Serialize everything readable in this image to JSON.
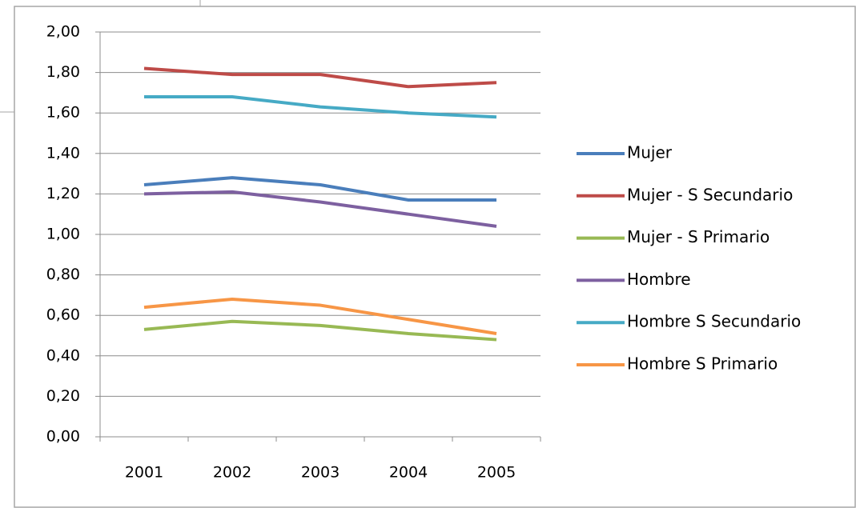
{
  "chart_data": {
    "type": "line",
    "categories": [
      "2001",
      "2002",
      "2003",
      "2004",
      "2005"
    ],
    "series": [
      {
        "name": "Mujer",
        "color": "#4a7ebb",
        "values": [
          1.245,
          1.28,
          1.245,
          1.17,
          1.17
        ]
      },
      {
        "name": "Mujer - S Secundario",
        "color": "#be4b48",
        "values": [
          1.82,
          1.79,
          1.79,
          1.73,
          1.75
        ]
      },
      {
        "name": "Mujer - S Primario",
        "color": "#98b954",
        "values": [
          0.53,
          0.57,
          0.55,
          0.51,
          0.48
        ]
      },
      {
        "name": "Hombre",
        "color": "#7d60a0",
        "values": [
          1.2,
          1.21,
          1.16,
          1.1,
          1.04
        ]
      },
      {
        "name": "Hombre S Secundario",
        "color": "#46aac5",
        "values": [
          1.68,
          1.68,
          1.63,
          1.6,
          1.58
        ]
      },
      {
        "name": "Hombre S Primario",
        "color": "#f79646",
        "values": [
          0.64,
          0.68,
          0.65,
          0.58,
          0.51
        ]
      }
    ],
    "ylim": [
      0,
      2
    ],
    "yticks": [
      {
        "value": 0,
        "label": "0,00"
      },
      {
        "value": 0.2,
        "label": "0,20"
      },
      {
        "value": 0.4,
        "label": "0,40"
      },
      {
        "value": 0.6,
        "label": "0,60"
      },
      {
        "value": 0.8,
        "label": "0,80"
      },
      {
        "value": 1,
        "label": "1,00"
      },
      {
        "value": 1.2,
        "label": "1,20"
      },
      {
        "value": 1.4,
        "label": "1,40"
      },
      {
        "value": 1.6,
        "label": "1,60"
      },
      {
        "value": 1.8,
        "label": "1,80"
      },
      {
        "value": 2,
        "label": "2,00"
      }
    ],
    "grid": true,
    "legend": "right"
  }
}
